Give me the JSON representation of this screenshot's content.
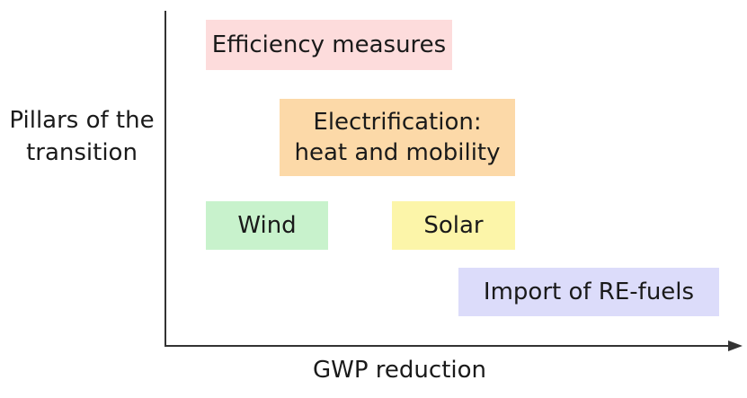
{
  "y_axis_label": [
    "Pillars of the",
    "transition"
  ],
  "x_axis_label": "GWP reduction",
  "pillars": [
    {
      "id": "efficiency",
      "lines": [
        "Efficiency measures"
      ],
      "color": "#fddcdc"
    },
    {
      "id": "electrification",
      "lines": [
        "Electrification:",
        "heat and mobility"
      ],
      "color": "#fcd9a8"
    },
    {
      "id": "wind",
      "lines": [
        "Wind"
      ],
      "color": "#c8f2cc"
    },
    {
      "id": "solar",
      "lines": [
        "Solar"
      ],
      "color": "#fcf5a9"
    },
    {
      "id": "re-fuels",
      "lines": [
        "Import of RE-fuels"
      ],
      "color": "#dcdcfa"
    }
  ]
}
